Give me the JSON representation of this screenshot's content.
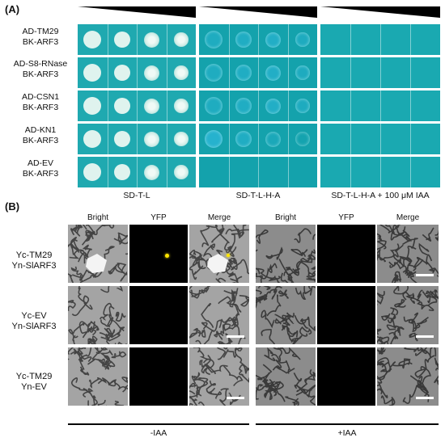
{
  "panel_a": {
    "label": "(A)",
    "rows": [
      {
        "line1": "AD-TM29",
        "line2": "BK-ARF3"
      },
      {
        "line1": "AD-S8-RNase",
        "line2": "BK-ARF3"
      },
      {
        "line1": "AD-CSN1",
        "line2": "BK-ARF3"
      },
      {
        "line1": "AD-KN1",
        "line2": "BK-ARF3"
      },
      {
        "line1": "AD-EV",
        "line2": "BK-ARF3"
      }
    ],
    "conditions": [
      "SD-T-L",
      "SD-T-L-H-A",
      "SD-T-L-H-A + 100 μM IAA"
    ],
    "plate_colors": {
      "media": "#1fa9b0",
      "colony": "#dff3ee",
      "wedge": "#000000"
    }
  },
  "panel_b": {
    "label": "(B)",
    "columns": [
      "Bright",
      "YFP",
      "Merge",
      "Bright",
      "YFP",
      "Merge"
    ],
    "rows": [
      {
        "line1": "Yc-TM29",
        "line2": "Yn-SlARF3"
      },
      {
        "line1": "Yc-EV",
        "line2": "Yn-SlARF3"
      },
      {
        "line1": "Yc-TM29",
        "line2": "Yn-EV"
      }
    ],
    "treatments": [
      "-IAA",
      "+IAA"
    ],
    "colors": {
      "yfp_signal": "#ffe600",
      "background": "#000000"
    }
  }
}
